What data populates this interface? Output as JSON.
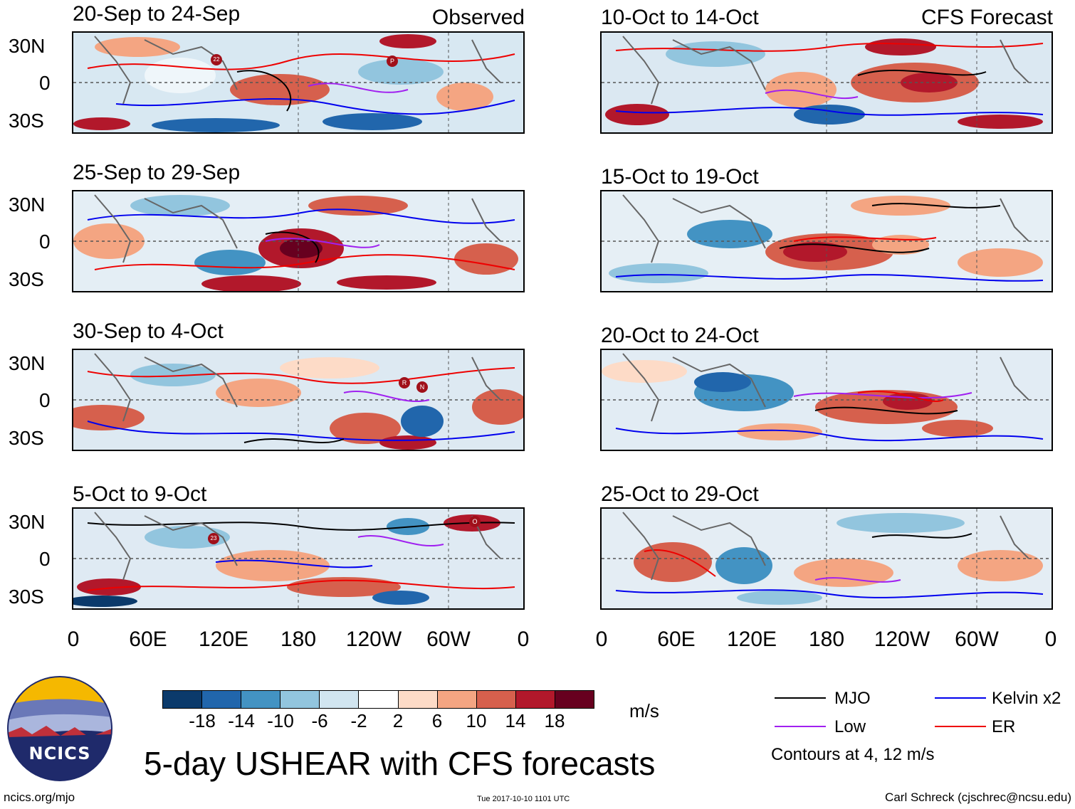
{
  "columns": {
    "left_header": "Observed",
    "right_header": "CFS Forecast"
  },
  "panels": {
    "left": [
      {
        "title": "20-Sep to 24-Sep",
        "storm_markers": [
          "22",
          "P"
        ]
      },
      {
        "title": "25-Sep to 29-Sep",
        "storm_markers": []
      },
      {
        "title": "30-Sep to 4-Oct",
        "storm_markers": [
          "R",
          "N"
        ]
      },
      {
        "title": "5-Oct to 9-Oct",
        "storm_markers": [
          "23",
          "O"
        ]
      }
    ],
    "right": [
      {
        "title": "10-Oct to 14-Oct"
      },
      {
        "title": "15-Oct to 19-Oct"
      },
      {
        "title": "20-Oct to 24-Oct"
      },
      {
        "title": "25-Oct to 29-Oct"
      }
    ]
  },
  "lat_labels": [
    "30N",
    "0",
    "30S"
  ],
  "lon_labels": [
    "0",
    "60E",
    "120E",
    "180",
    "120W",
    "60W",
    "0"
  ],
  "colorbar": {
    "labels": [
      "-18",
      "-14",
      "-10",
      "-6",
      "-2",
      "2",
      "6",
      "10",
      "14",
      "18"
    ],
    "colors": [
      "#0b3a6b",
      "#2166ac",
      "#4393c3",
      "#92c5de",
      "#d1e5f0",
      "#ffffff",
      "#fddbc7",
      "#f4a582",
      "#d6604d",
      "#b2182b",
      "#67001f"
    ],
    "units": "m/s"
  },
  "legend": {
    "items": [
      {
        "label": "MJO",
        "color": "#000000"
      },
      {
        "label": "Kelvin x2",
        "color": "#0000ee"
      },
      {
        "label": "Low",
        "color": "#a020f0"
      },
      {
        "label": "ER",
        "color": "#ee0000"
      }
    ],
    "note": "Contours at 4, 12 m/s"
  },
  "logo_text": "NCICS",
  "main_title": "5-day USHEAR with CFS forecasts",
  "footer": {
    "left": "ncics.org/mjo",
    "center": "Tue 2017-10-10 1101 UTC",
    "right": "Carl Schreck (cjschrec@ncsu.edu)"
  }
}
